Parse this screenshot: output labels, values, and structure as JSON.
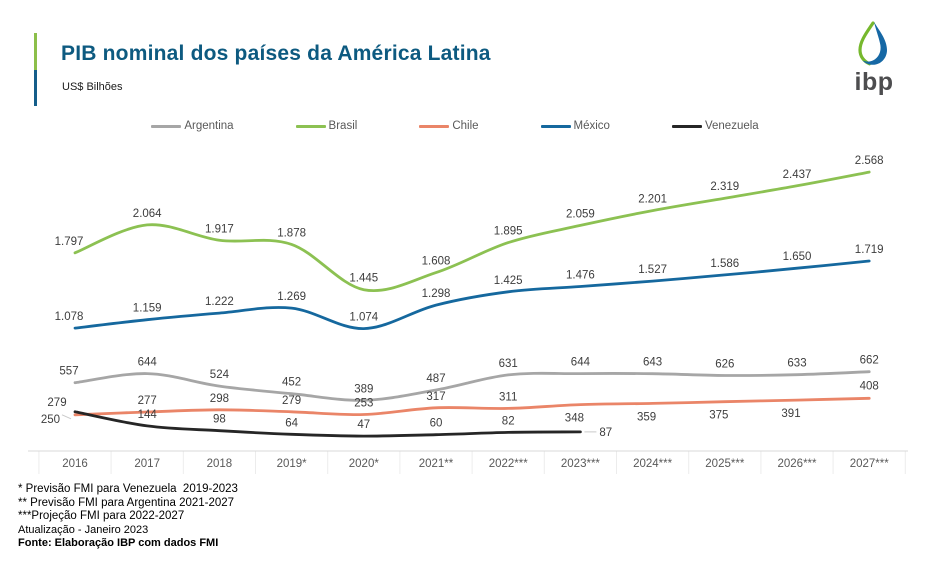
{
  "header": {
    "title": "PIB nominal dos países da América Latina",
    "subtitle": "US$ Bilhões",
    "logo_text": "ibp"
  },
  "colors": {
    "title": "#0d5a80",
    "accent_green": "#8cbf4a",
    "accent_blue": "#155e8a",
    "axis_line": "#d9d9d9",
    "tick_separator": "#ececec",
    "axis_label": "#595959",
    "data_label": "#3d3d3d",
    "logo_green": "#76b82d",
    "logo_blue": "#1668a5"
  },
  "chart_data": {
    "type": "line",
    "title": "PIB nominal dos países da América Latina",
    "ylabel": "US$ Bilhões",
    "ylim": [
      0,
      2800
    ],
    "grid": false,
    "legend_position": "top",
    "categories": [
      "2016",
      "2017",
      "2018",
      "2019*",
      "2020*",
      "2021**",
      "2022***",
      "2023***",
      "2024***",
      "2025***",
      "2026***",
      "2027***"
    ],
    "series": [
      {
        "name": "Argentina",
        "color": "#a6a6a6",
        "values": [
          557,
          644,
          524,
          452,
          389,
          487,
          631,
          644,
          643,
          626,
          633,
          662
        ]
      },
      {
        "name": "Brasil",
        "color": "#8cc152",
        "values": [
          1797,
          2064,
          1917,
          1878,
          1445,
          1608,
          1895,
          2059,
          2201,
          2319,
          2437,
          2568
        ]
      },
      {
        "name": "Chile",
        "color": "#ea8568",
        "values": [
          250,
          277,
          298,
          279,
          253,
          317,
          311,
          348,
          359,
          375,
          391,
          408
        ]
      },
      {
        "name": "México",
        "color": "#15689e",
        "values": [
          1078,
          1159,
          1222,
          1269,
          1074,
          1298,
          1425,
          1476,
          1527,
          1586,
          1650,
          1719
        ]
      },
      {
        "name": "Venezuela",
        "color": "#262626",
        "values": [
          279,
          144,
          98,
          64,
          47,
          60,
          82,
          87
        ]
      }
    ]
  },
  "footnotes": {
    "lines": [
      "* Previsão FMI para Venezuela  2019-2023",
      "** Previsão FMI para Argentina 2021-2027",
      "***Projeção FMI para 2022-2027",
      "Atualização - Janeiro 2023"
    ],
    "source": "Fonte: Elaboração IBP com dados FMI"
  }
}
